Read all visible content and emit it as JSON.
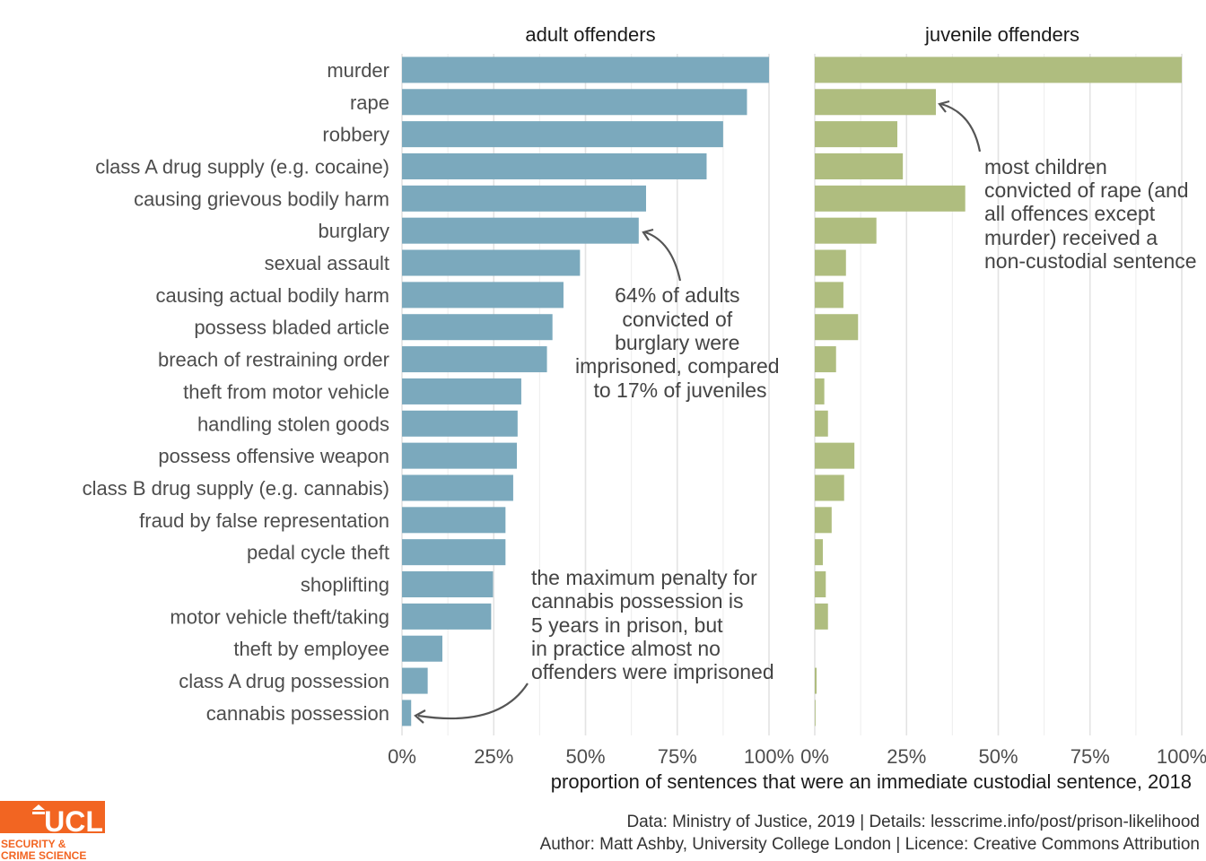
{
  "chart_data": {
    "type": "bar",
    "orientation": "horizontal",
    "categories": [
      "murder",
      "rape",
      "robbery",
      "class A drug supply (e.g. cocaine)",
      "causing grievous bodily harm",
      "burglary",
      "sexual assault",
      "causing actual bodily harm",
      "possess bladed article",
      "breach of restraining order",
      "theft from motor vehicle",
      "handling stolen goods",
      "possess offensive weapon",
      "class B drug supply (e.g. cannabis)",
      "fraud by false representation",
      "pedal cycle theft",
      "shoplifting",
      "motor vehicle theft/taking",
      "theft by employee",
      "class A drug possession",
      "cannabis possession"
    ],
    "panels": [
      {
        "title": "adult offenders",
        "color": "#7BA9BD",
        "values": [
          1.0,
          0.94,
          0.875,
          0.83,
          0.665,
          0.645,
          0.485,
          0.44,
          0.41,
          0.395,
          0.325,
          0.315,
          0.313,
          0.303,
          0.282,
          0.282,
          0.248,
          0.243,
          0.11,
          0.07,
          0.025
        ]
      },
      {
        "title": "juvenile offenders",
        "color": "#AFBD7F",
        "values": [
          1.0,
          0.33,
          0.225,
          0.24,
          0.41,
          0.168,
          0.085,
          0.078,
          0.118,
          0.058,
          0.026,
          0.036,
          0.108,
          0.08,
          0.046,
          0.022,
          0.03,
          0.036,
          0.0,
          0.005,
          0.002
        ]
      }
    ],
    "xlim": [
      0,
      1
    ],
    "xticks": [
      "0%",
      "25%",
      "50%",
      "75%",
      "100%"
    ],
    "xlabel": "proportion of sentences that were an immediate custodial sentence, 2018",
    "grid": "vertical",
    "annotations": [
      {
        "lines": [
          "64% of adults",
          "convicted of",
          "burglary were",
          "imprisoned, compared",
          "to 17% of juveniles"
        ]
      },
      {
        "lines": [
          "the maximum penalty for",
          "cannabis possession is",
          "5 years in prison, but",
          "in practice almost no",
          "offenders were imprisoned"
        ]
      },
      {
        "lines": [
          "most children",
          "convicted of rape (and",
          "all offences except",
          "murder) received a",
          "non-custodial sentence"
        ]
      }
    ]
  },
  "caption": {
    "line1": "Data: Ministry of Justice, 2019 |  Details: lesscrime.info/post/prison-likelihood",
    "line2": "Author: Matt Ashby, University College London |  Licence: Creative Commons Attribution"
  },
  "logo": {
    "wordmark": "UCL",
    "subtitle_line1": "SECURITY &",
    "subtitle_line2": "CRIME SCIENCE",
    "color": "#F26522"
  }
}
